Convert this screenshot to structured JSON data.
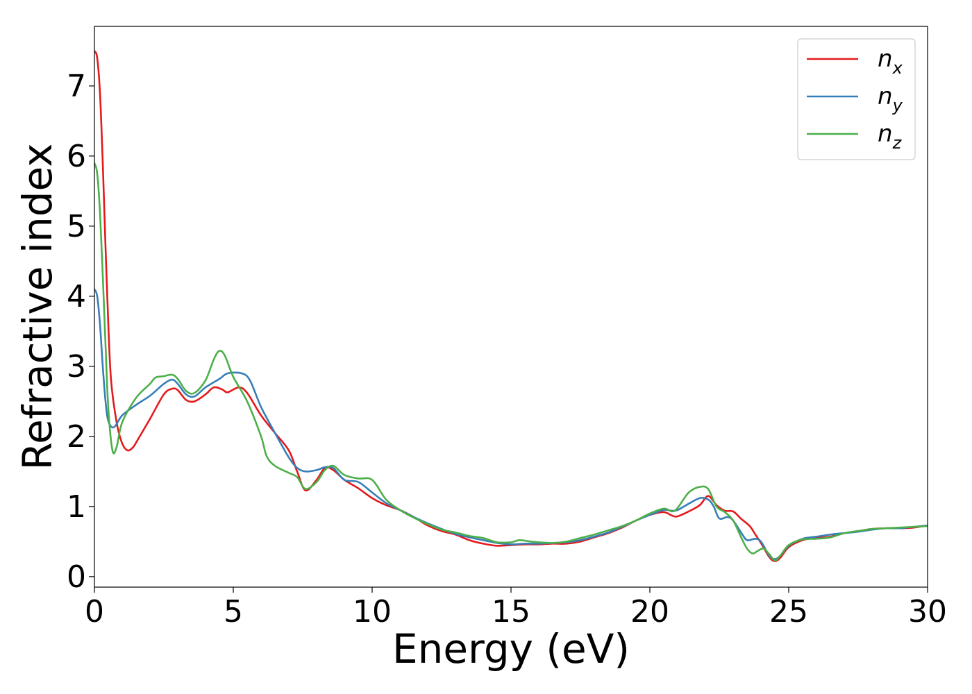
{
  "chart_data": {
    "type": "line",
    "title": "",
    "xlabel": "Energy (eV)",
    "ylabel": "Refractive index",
    "xlim": [
      0,
      30
    ],
    "ylim": [
      -0.15,
      7.85
    ],
    "x_ticks": [
      0,
      5,
      10,
      15,
      20,
      25,
      30
    ],
    "y_ticks": [
      0,
      1,
      2,
      3,
      4,
      5,
      6,
      7
    ],
    "grid": false,
    "legend_position": "top-right",
    "series": [
      {
        "name": "n_x",
        "label_main": "n",
        "label_sub": "x",
        "color": "#e41a1c",
        "points": [
          [
            0,
            7.5
          ],
          [
            0.1,
            7.4
          ],
          [
            0.2,
            6.9
          ],
          [
            0.3,
            5.9
          ],
          [
            0.4,
            4.7
          ],
          [
            0.5,
            3.6
          ],
          [
            0.6,
            2.8
          ],
          [
            0.8,
            2.2
          ],
          [
            1.0,
            1.9
          ],
          [
            1.2,
            1.8
          ],
          [
            1.4,
            1.85
          ],
          [
            1.6,
            1.98
          ],
          [
            2.0,
            2.25
          ],
          [
            2.5,
            2.6
          ],
          [
            2.8,
            2.68
          ],
          [
            3.0,
            2.66
          ],
          [
            3.3,
            2.52
          ],
          [
            3.6,
            2.5
          ],
          [
            4.0,
            2.6
          ],
          [
            4.3,
            2.7
          ],
          [
            4.6,
            2.67
          ],
          [
            4.8,
            2.63
          ],
          [
            5.2,
            2.7
          ],
          [
            5.5,
            2.62
          ],
          [
            6.0,
            2.3
          ],
          [
            6.5,
            2.05
          ],
          [
            7.0,
            1.8
          ],
          [
            7.3,
            1.5
          ],
          [
            7.6,
            1.23
          ],
          [
            8.0,
            1.38
          ],
          [
            8.3,
            1.55
          ],
          [
            8.6,
            1.52
          ],
          [
            9.0,
            1.38
          ],
          [
            9.5,
            1.26
          ],
          [
            10.0,
            1.12
          ],
          [
            10.5,
            1.02
          ],
          [
            11.0,
            0.95
          ],
          [
            11.5,
            0.85
          ],
          [
            12.0,
            0.73
          ],
          [
            12.5,
            0.65
          ],
          [
            13.0,
            0.6
          ],
          [
            13.5,
            0.52
          ],
          [
            14.0,
            0.47
          ],
          [
            14.5,
            0.44
          ],
          [
            15.0,
            0.45
          ],
          [
            15.5,
            0.46
          ],
          [
            16.0,
            0.46
          ],
          [
            16.5,
            0.47
          ],
          [
            17.0,
            0.47
          ],
          [
            17.5,
            0.5
          ],
          [
            18.0,
            0.56
          ],
          [
            18.5,
            0.62
          ],
          [
            19.0,
            0.7
          ],
          [
            19.5,
            0.8
          ],
          [
            20.0,
            0.88
          ],
          [
            20.5,
            0.92
          ],
          [
            20.8,
            0.87
          ],
          [
            21.0,
            0.86
          ],
          [
            21.4,
            0.93
          ],
          [
            21.8,
            1.02
          ],
          [
            22.1,
            1.15
          ],
          [
            22.4,
            1.02
          ],
          [
            22.7,
            0.94
          ],
          [
            23.0,
            0.93
          ],
          [
            23.3,
            0.82
          ],
          [
            23.6,
            0.72
          ],
          [
            23.8,
            0.6
          ],
          [
            24.0,
            0.48
          ],
          [
            24.3,
            0.28
          ],
          [
            24.5,
            0.22
          ],
          [
            24.7,
            0.27
          ],
          [
            25.0,
            0.42
          ],
          [
            25.5,
            0.52
          ],
          [
            26.0,
            0.55
          ],
          [
            26.5,
            0.57
          ],
          [
            27.0,
            0.62
          ],
          [
            27.5,
            0.65
          ],
          [
            28.0,
            0.68
          ],
          [
            28.5,
            0.69
          ],
          [
            29.0,
            0.69
          ],
          [
            29.5,
            0.7
          ],
          [
            30.0,
            0.73
          ]
        ]
      },
      {
        "name": "n_y",
        "label_main": "n",
        "label_sub": "y",
        "color": "#377eb8",
        "points": [
          [
            0,
            4.1
          ],
          [
            0.1,
            4.0
          ],
          [
            0.2,
            3.6
          ],
          [
            0.3,
            3.0
          ],
          [
            0.4,
            2.5
          ],
          [
            0.5,
            2.22
          ],
          [
            0.7,
            2.13
          ],
          [
            1.0,
            2.3
          ],
          [
            1.5,
            2.45
          ],
          [
            2.0,
            2.58
          ],
          [
            2.5,
            2.75
          ],
          [
            2.8,
            2.81
          ],
          [
            3.0,
            2.75
          ],
          [
            3.3,
            2.6
          ],
          [
            3.6,
            2.57
          ],
          [
            4.0,
            2.7
          ],
          [
            4.5,
            2.82
          ],
          [
            4.8,
            2.9
          ],
          [
            5.3,
            2.9
          ],
          [
            5.6,
            2.8
          ],
          [
            6.0,
            2.42
          ],
          [
            6.5,
            2.05
          ],
          [
            7.0,
            1.7
          ],
          [
            7.3,
            1.55
          ],
          [
            7.6,
            1.5
          ],
          [
            8.0,
            1.52
          ],
          [
            8.3,
            1.56
          ],
          [
            8.6,
            1.55
          ],
          [
            9.0,
            1.38
          ],
          [
            9.5,
            1.35
          ],
          [
            10.0,
            1.2
          ],
          [
            10.5,
            1.05
          ],
          [
            11.0,
            0.95
          ],
          [
            11.5,
            0.85
          ],
          [
            12.0,
            0.76
          ],
          [
            12.5,
            0.68
          ],
          [
            13.0,
            0.61
          ],
          [
            13.5,
            0.56
          ],
          [
            14.0,
            0.52
          ],
          [
            14.5,
            0.48
          ],
          [
            15.0,
            0.46
          ],
          [
            15.5,
            0.47
          ],
          [
            16.0,
            0.47
          ],
          [
            16.5,
            0.48
          ],
          [
            17.0,
            0.49
          ],
          [
            17.5,
            0.52
          ],
          [
            18.0,
            0.57
          ],
          [
            18.5,
            0.63
          ],
          [
            19.0,
            0.71
          ],
          [
            19.5,
            0.8
          ],
          [
            20.0,
            0.88
          ],
          [
            20.5,
            0.95
          ],
          [
            20.8,
            0.94
          ],
          [
            21.0,
            0.95
          ],
          [
            21.4,
            1.04
          ],
          [
            21.8,
            1.12
          ],
          [
            22.1,
            1.1
          ],
          [
            22.3,
            1.0
          ],
          [
            22.5,
            0.83
          ],
          [
            22.8,
            0.85
          ],
          [
            23.0,
            0.8
          ],
          [
            23.3,
            0.62
          ],
          [
            23.5,
            0.52
          ],
          [
            23.8,
            0.54
          ],
          [
            24.0,
            0.5
          ],
          [
            24.3,
            0.3
          ],
          [
            24.5,
            0.25
          ],
          [
            24.7,
            0.3
          ],
          [
            25.0,
            0.44
          ],
          [
            25.5,
            0.54
          ],
          [
            26.0,
            0.57
          ],
          [
            26.5,
            0.6
          ],
          [
            27.0,
            0.62
          ],
          [
            27.5,
            0.64
          ],
          [
            28.0,
            0.67
          ],
          [
            28.5,
            0.69
          ],
          [
            29.0,
            0.69
          ],
          [
            29.5,
            0.71
          ],
          [
            30.0,
            0.73
          ]
        ]
      },
      {
        "name": "n_z",
        "label_main": "n",
        "label_sub": "z",
        "color": "#4daf4a",
        "points": [
          [
            0,
            5.9
          ],
          [
            0.1,
            5.75
          ],
          [
            0.2,
            5.2
          ],
          [
            0.3,
            4.3
          ],
          [
            0.4,
            3.3
          ],
          [
            0.5,
            2.4
          ],
          [
            0.65,
            1.8
          ],
          [
            0.8,
            1.85
          ],
          [
            1.0,
            2.2
          ],
          [
            1.5,
            2.55
          ],
          [
            2.0,
            2.75
          ],
          [
            2.2,
            2.84
          ],
          [
            2.5,
            2.86
          ],
          [
            2.8,
            2.88
          ],
          [
            3.0,
            2.82
          ],
          [
            3.3,
            2.65
          ],
          [
            3.6,
            2.62
          ],
          [
            4.0,
            2.8
          ],
          [
            4.3,
            3.1
          ],
          [
            4.5,
            3.22
          ],
          [
            4.7,
            3.15
          ],
          [
            5.0,
            2.85
          ],
          [
            5.5,
            2.5
          ],
          [
            6.0,
            2.0
          ],
          [
            6.2,
            1.72
          ],
          [
            6.5,
            1.58
          ],
          [
            7.0,
            1.48
          ],
          [
            7.3,
            1.42
          ],
          [
            7.6,
            1.25
          ],
          [
            8.0,
            1.35
          ],
          [
            8.3,
            1.52
          ],
          [
            8.6,
            1.58
          ],
          [
            9.0,
            1.45
          ],
          [
            9.5,
            1.4
          ],
          [
            10.0,
            1.38
          ],
          [
            10.5,
            1.1
          ],
          [
            11.0,
            0.95
          ],
          [
            11.5,
            0.84
          ],
          [
            12.0,
            0.75
          ],
          [
            12.5,
            0.67
          ],
          [
            13.0,
            0.63
          ],
          [
            13.5,
            0.58
          ],
          [
            14.0,
            0.55
          ],
          [
            14.5,
            0.49
          ],
          [
            15.0,
            0.49
          ],
          [
            15.3,
            0.52
          ],
          [
            15.7,
            0.5
          ],
          [
            16.0,
            0.49
          ],
          [
            16.5,
            0.48
          ],
          [
            17.0,
            0.5
          ],
          [
            17.5,
            0.55
          ],
          [
            18.0,
            0.6
          ],
          [
            18.5,
            0.66
          ],
          [
            19.0,
            0.72
          ],
          [
            19.5,
            0.8
          ],
          [
            20.0,
            0.9
          ],
          [
            20.5,
            0.97
          ],
          [
            20.8,
            0.93
          ],
          [
            21.0,
            0.98
          ],
          [
            21.4,
            1.2
          ],
          [
            21.8,
            1.28
          ],
          [
            22.1,
            1.25
          ],
          [
            22.4,
            1.0
          ],
          [
            22.7,
            0.92
          ],
          [
            23.0,
            0.8
          ],
          [
            23.3,
            0.55
          ],
          [
            23.5,
            0.4
          ],
          [
            23.7,
            0.33
          ],
          [
            23.9,
            0.37
          ],
          [
            24.1,
            0.4
          ],
          [
            24.3,
            0.32
          ],
          [
            24.5,
            0.23
          ],
          [
            24.7,
            0.3
          ],
          [
            25.0,
            0.45
          ],
          [
            25.5,
            0.53
          ],
          [
            26.0,
            0.54
          ],
          [
            26.5,
            0.56
          ],
          [
            27.0,
            0.62
          ],
          [
            27.5,
            0.65
          ],
          [
            28.0,
            0.68
          ],
          [
            28.5,
            0.69
          ],
          [
            29.0,
            0.7
          ],
          [
            29.5,
            0.71
          ],
          [
            30.0,
            0.72
          ]
        ]
      }
    ]
  }
}
